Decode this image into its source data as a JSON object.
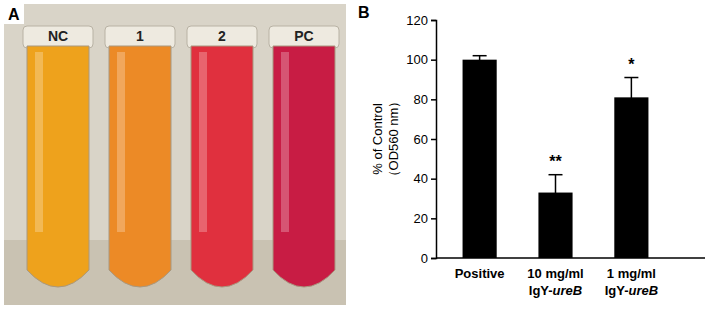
{
  "chart_data": {
    "type": "bar",
    "title": "B",
    "categories": [
      "Positive",
      "10 mg/ml IgY-ureB",
      "1 mg/ml IgY-ureB"
    ],
    "values": [
      100,
      33,
      81
    ],
    "errors": [
      2,
      9,
      10
    ],
    "color": "#000000",
    "y_label": [
      "% of Control",
      "（OD560 nm）"
    ],
    "ylim": [
      0,
      120
    ],
    "yticks": [
      0,
      20,
      40,
      60,
      80,
      100,
      120
    ],
    "grid": false,
    "annotations": [
      {
        "category": "10 mg/ml IgY-ureB",
        "text": "**"
      },
      {
        "category": "1 mg/ml IgY-ureB",
        "text": "*"
      }
    ]
  },
  "photo": {
    "label": "A",
    "tubes": [
      {
        "label": "NC",
        "color": "#eea21c"
      },
      {
        "label": "1",
        "color": "#ec8a26"
      },
      {
        "label": "2",
        "color": "#e0303e"
      },
      {
        "label": "PC",
        "color": "#c81c44"
      }
    ]
  }
}
